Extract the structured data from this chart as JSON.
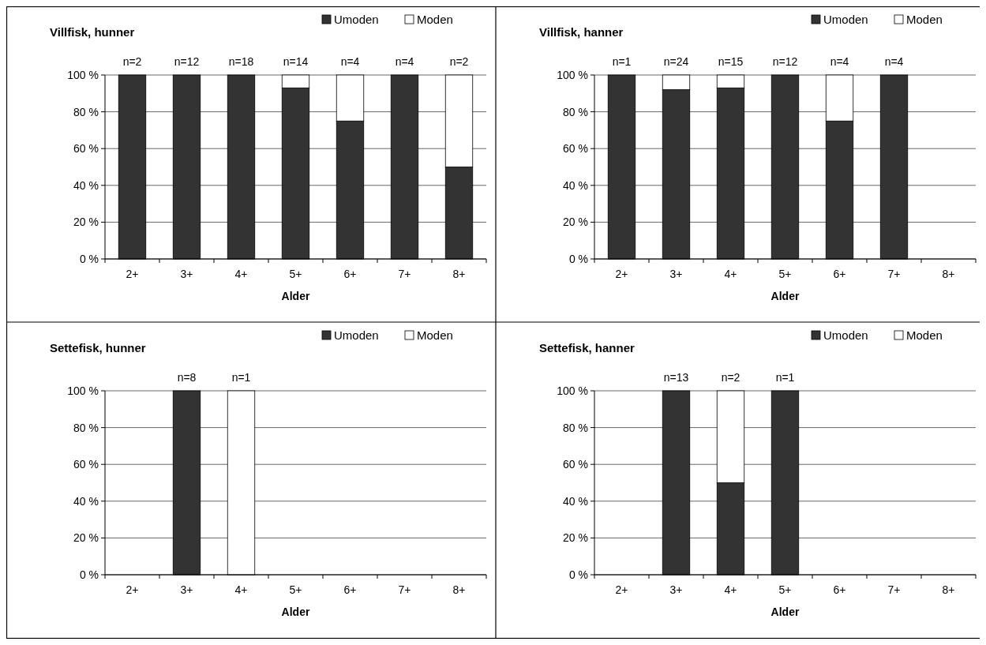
{
  "chart_data": [
    {
      "type": "bar",
      "title": "Villfisk, hunner",
      "xlabel": "Alder",
      "categories": [
        "2+",
        "3+",
        "4+",
        "5+",
        "6+",
        "7+",
        "8+"
      ],
      "stacked": true,
      "legend": "top right",
      "grid": "y",
      "ylim": [
        0,
        100
      ],
      "yticks": [
        {
          "value": 0,
          "label": "0 %"
        },
        {
          "value": 20,
          "label": "20 %"
        },
        {
          "value": 40,
          "label": "40 %"
        },
        {
          "value": 60,
          "label": "60 %"
        },
        {
          "value": 80,
          "label": "80 %"
        },
        {
          "value": 100,
          "label": "100 %"
        }
      ],
      "series": [
        {
          "name": "Umoden",
          "color": "#333333",
          "values": [
            100,
            100,
            100,
            93,
            75,
            100,
            50
          ]
        },
        {
          "name": "Moden",
          "color": "#ffffff",
          "values": [
            0,
            0,
            0,
            7,
            25,
            0,
            50
          ]
        }
      ],
      "annotations": [
        {
          "text": "n=2",
          "x": "2+",
          "y": 100
        },
        {
          "text": "n=12",
          "x": "3+",
          "y": 100
        },
        {
          "text": "n=18",
          "x": "4+",
          "y": 100
        },
        {
          "text": "n=14",
          "x": "5+",
          "y": 100
        },
        {
          "text": "n=4",
          "x": "6+",
          "y": 100
        },
        {
          "text": "n=4",
          "x": "7+",
          "y": 100
        },
        {
          "text": "n=2",
          "x": "8+",
          "y": 100
        }
      ]
    },
    {
      "type": "bar",
      "title": "Villfisk, hanner",
      "xlabel": "Alder",
      "categories": [
        "2+",
        "3+",
        "4+",
        "5+",
        "6+",
        "7+",
        "8+"
      ],
      "stacked": true,
      "legend": "top right",
      "grid": "y",
      "ylim": [
        0,
        100
      ],
      "yticks": [
        {
          "value": 0,
          "label": "0 %"
        },
        {
          "value": 20,
          "label": "20 %"
        },
        {
          "value": 40,
          "label": "40 %"
        },
        {
          "value": 60,
          "label": "60 %"
        },
        {
          "value": 80,
          "label": "80 %"
        },
        {
          "value": 100,
          "label": "100 %"
        }
      ],
      "series": [
        {
          "name": "Umoden",
          "color": "#333333",
          "values": [
            100,
            92,
            93,
            100,
            75,
            100,
            null
          ]
        },
        {
          "name": "Moden",
          "color": "#ffffff",
          "values": [
            0,
            8,
            7,
            0,
            25,
            0,
            null
          ]
        }
      ],
      "annotations": [
        {
          "text": "n=1",
          "x": "2+",
          "y": 100
        },
        {
          "text": "n=24",
          "x": "3+",
          "y": 100
        },
        {
          "text": "n=15",
          "x": "4+",
          "y": 100
        },
        {
          "text": "n=12",
          "x": "5+",
          "y": 100
        },
        {
          "text": "n=4",
          "x": "6+",
          "y": 100
        },
        {
          "text": "n=4",
          "x": "7+",
          "y": 100
        }
      ]
    },
    {
      "type": "bar",
      "title": "Settefisk, hunner",
      "xlabel": "Alder",
      "categories": [
        "2+",
        "3+",
        "4+",
        "5+",
        "6+",
        "7+",
        "8+"
      ],
      "stacked": true,
      "legend": "top right",
      "grid": "y",
      "ylim": [
        0,
        100
      ],
      "yticks": [
        {
          "value": 0,
          "label": "0 %"
        },
        {
          "value": 20,
          "label": "20 %"
        },
        {
          "value": 40,
          "label": "40 %"
        },
        {
          "value": 60,
          "label": "60 %"
        },
        {
          "value": 80,
          "label": "80 %"
        },
        {
          "value": 100,
          "label": "100 %"
        }
      ],
      "series": [
        {
          "name": "Umoden",
          "color": "#333333",
          "values": [
            null,
            100,
            0,
            null,
            null,
            null,
            null
          ]
        },
        {
          "name": "Moden",
          "color": "#ffffff",
          "values": [
            null,
            0,
            100,
            null,
            null,
            null,
            null
          ]
        }
      ],
      "annotations": [
        {
          "text": "n=8",
          "x": "3+",
          "y": 100
        },
        {
          "text": "n=1",
          "x": "4+",
          "y": 100
        }
      ]
    },
    {
      "type": "bar",
      "title": "Settefisk, hanner",
      "xlabel": "Alder",
      "categories": [
        "2+",
        "3+",
        "4+",
        "5+",
        "6+",
        "7+",
        "8+"
      ],
      "stacked": true,
      "legend": "top right",
      "grid": "y",
      "ylim": [
        0,
        100
      ],
      "yticks": [
        {
          "value": 0,
          "label": "0 %"
        },
        {
          "value": 20,
          "label": "20 %"
        },
        {
          "value": 40,
          "label": "40 %"
        },
        {
          "value": 60,
          "label": "60 %"
        },
        {
          "value": 80,
          "label": "80 %"
        },
        {
          "value": 100,
          "label": "100 %"
        }
      ],
      "series": [
        {
          "name": "Umoden",
          "color": "#333333",
          "values": [
            null,
            100,
            50,
            100,
            null,
            null,
            null
          ]
        },
        {
          "name": "Moden",
          "color": "#ffffff",
          "values": [
            null,
            0,
            50,
            0,
            null,
            null,
            null
          ]
        }
      ],
      "annotations": [
        {
          "text": "n=13",
          "x": "3+",
          "y": 100
        },
        {
          "text": "n=2",
          "x": "4+",
          "y": 100
        },
        {
          "text": "n=1",
          "x": "5+",
          "y": 100
        }
      ]
    }
  ]
}
